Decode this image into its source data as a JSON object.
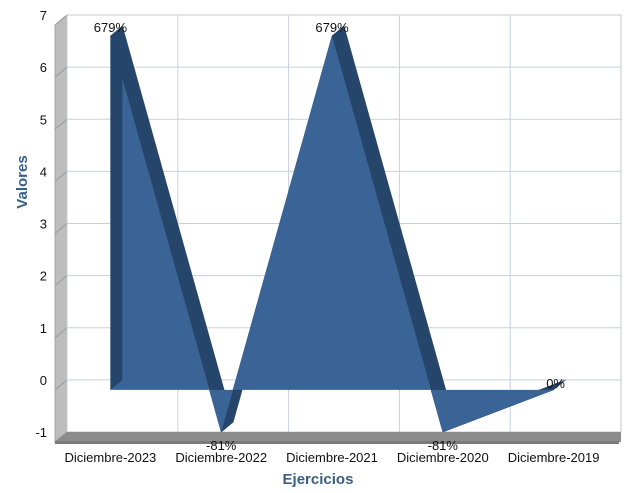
{
  "chart_data": {
    "type": "area",
    "categories": [
      "Diciembre-2023",
      "Diciembre-2022",
      "Diciembre-2021",
      "Diciembre-2020",
      "Diciembre-2019"
    ],
    "values": [
      6.79,
      -0.81,
      6.79,
      -0.81,
      0
    ],
    "data_labels": [
      "679%",
      "-81%",
      "679%",
      "-81%",
      "0%"
    ],
    "xlabel": "Ejercicios",
    "ylabel": "Valores",
    "ylim": [
      -1,
      7
    ],
    "yticks": [
      "-1",
      "0",
      "1",
      "2",
      "3",
      "4",
      "5",
      "6",
      "7"
    ],
    "grid": true,
    "legend": "none",
    "three_d": true,
    "colors": {
      "area_front": "#3a6496",
      "area_side": "#26456b",
      "floor": "#8c8c8c",
      "wall": "#bdbdbd",
      "grid": "#c8cfe0"
    }
  }
}
